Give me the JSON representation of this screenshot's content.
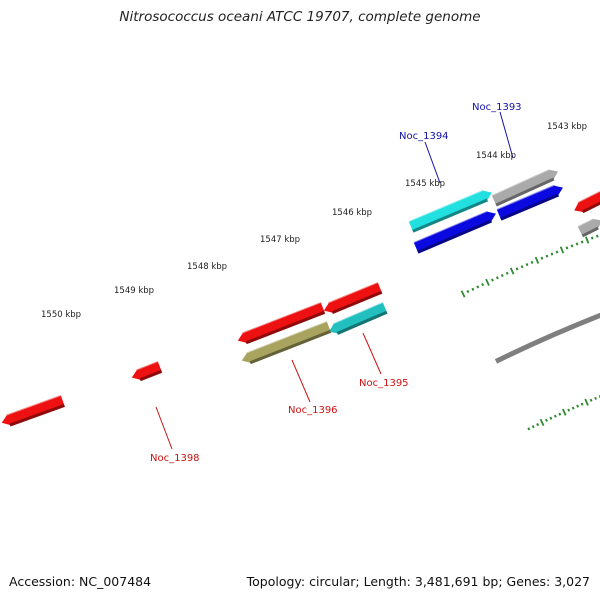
{
  "title": "Nitrosococcus oceani ATCC 19707, complete genome",
  "footer": {
    "accession": "Accession: NC_007484",
    "summary": "Topology: circular; Length: 3,481,691 bp; Genes: 3,027"
  },
  "colors": {
    "backbone": "#7f7f7f",
    "tick": "#2e8b2e",
    "label_red": "#cc1111",
    "label_blue": "#1111aa"
  },
  "scale": {
    "unit": "kbp",
    "labels": [
      "1543 kbp",
      "1544 kbp",
      "1545 kbp",
      "1546 kbp",
      "1547 kbp",
      "1548 kbp",
      "1549 kbp",
      "1550 kbp"
    ]
  },
  "genes": [
    {
      "name": "Noc_1393",
      "color": "#aaaaaa",
      "strand": "+"
    },
    {
      "name": "Noc_1394",
      "color": "#22e0e0",
      "strand": "+"
    },
    {
      "name": "Noc_1395",
      "color": "#22bfbf",
      "strand": "-"
    },
    {
      "name": "Noc_1396",
      "color": "#a8a460",
      "strand": "-"
    },
    {
      "name": "Noc_1398",
      "color": "#ee1111",
      "strand": "-"
    }
  ],
  "label_names": {
    "Noc_1393": "Noc_1393",
    "Noc_1394": "Noc_1394",
    "Noc_1395": "Noc_1395",
    "Noc_1396": "Noc_1396",
    "Noc_1398": "Noc_1398"
  }
}
